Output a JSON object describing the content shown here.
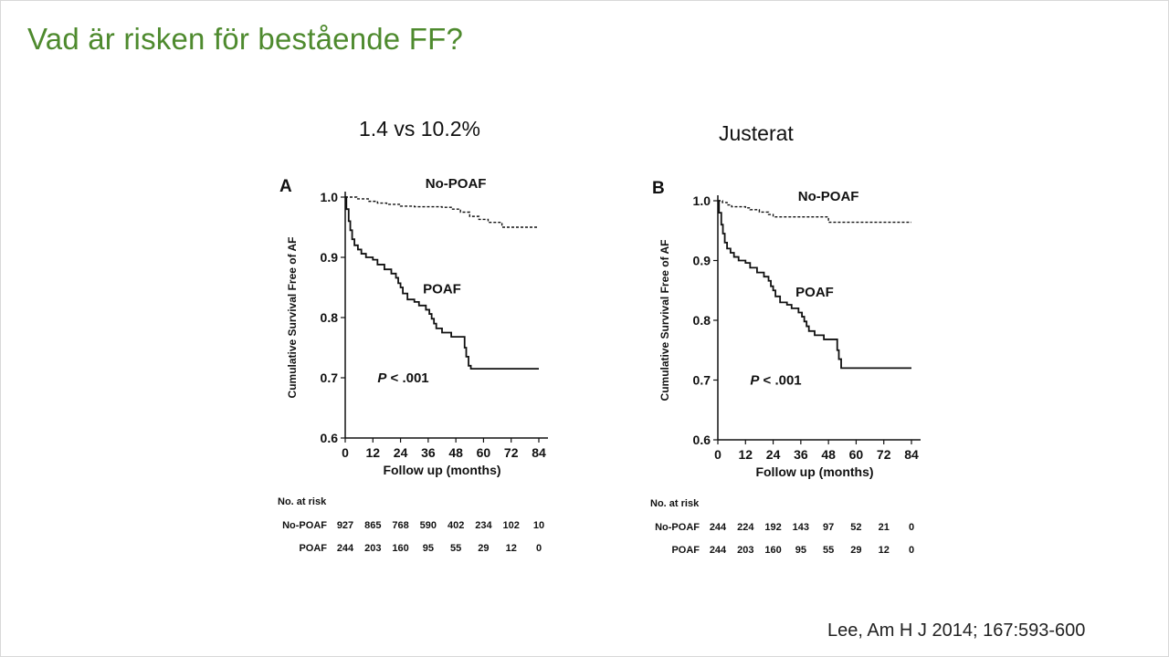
{
  "slide": {
    "title": "Vad är risken för bestående FF?",
    "citation": "Lee, Am H J 2014; 167:593-600"
  },
  "panels": [
    {
      "heading": "1.4 vs 10.2%"
    },
    {
      "heading": "Justerat"
    }
  ],
  "colors": {
    "title": "#4e8a2e",
    "lines": "#111111"
  },
  "chart_data": [
    {
      "type": "line",
      "panel_label": "A",
      "xlabel": "Follow up (months)",
      "ylabel": "Cumulative Survival Free of AF",
      "xlim": [
        0,
        84
      ],
      "ylim": [
        0.6,
        1.0
      ],
      "x_ticks": [
        0,
        12,
        24,
        36,
        48,
        60,
        72,
        84
      ],
      "y_ticks": [
        "0.6",
        "0.7",
        "0.8",
        "0.9",
        "1.0"
      ],
      "grid": false,
      "p_value": {
        "prefix": "P",
        "text": " < .001"
      },
      "series": [
        {
          "name": "No-POAF",
          "style": "dashed",
          "label_at": [
            48,
            1.015
          ],
          "points": [
            [
              0,
              1.0
            ],
            [
              5,
              0.997
            ],
            [
              10,
              0.993
            ],
            [
              14,
              0.99
            ],
            [
              18,
              0.988
            ],
            [
              24,
              0.985
            ],
            [
              30,
              0.984
            ],
            [
              36,
              0.984
            ],
            [
              42,
              0.983
            ],
            [
              46,
              0.98
            ],
            [
              50,
              0.975
            ],
            [
              54,
              0.968
            ],
            [
              58,
              0.963
            ],
            [
              62,
              0.958
            ],
            [
              68,
              0.95
            ],
            [
              84,
              0.95
            ]
          ]
        },
        {
          "name": "POAF",
          "style": "solid",
          "label_at": [
            42,
            0.84
          ],
          "points": [
            [
              0,
              1.0
            ],
            [
              0.5,
              0.98
            ],
            [
              1.5,
              0.96
            ],
            [
              2.2,
              0.945
            ],
            [
              3,
              0.93
            ],
            [
              4,
              0.92
            ],
            [
              5.5,
              0.913
            ],
            [
              7,
              0.906
            ],
            [
              9,
              0.9
            ],
            [
              12,
              0.896
            ],
            [
              14,
              0.888
            ],
            [
              17,
              0.88
            ],
            [
              20,
              0.873
            ],
            [
              22,
              0.866
            ],
            [
              23,
              0.857
            ],
            [
              24,
              0.85
            ],
            [
              25,
              0.84
            ],
            [
              27,
              0.83
            ],
            [
              30,
              0.826
            ],
            [
              32,
              0.82
            ],
            [
              35,
              0.813
            ],
            [
              36.5,
              0.806
            ],
            [
              37.5,
              0.798
            ],
            [
              38.5,
              0.79
            ],
            [
              39.5,
              0.782
            ],
            [
              42,
              0.775
            ],
            [
              46,
              0.768
            ],
            [
              51,
              0.768
            ],
            [
              51.8,
              0.75
            ],
            [
              52.5,
              0.735
            ],
            [
              53.5,
              0.72
            ],
            [
              54.5,
              0.715
            ],
            [
              84,
              0.715
            ]
          ]
        }
      ],
      "risk_table": {
        "title": "No. at risk",
        "rows": [
          {
            "label": "No-POAF",
            "values": [
              "927",
              "865",
              "768",
              "590",
              "402",
              "234",
              "102",
              "10"
            ]
          },
          {
            "label": "POAF",
            "values": [
              "244",
              "203",
              "160",
              "95",
              "55",
              "29",
              "12",
              "0"
            ]
          }
        ]
      }
    },
    {
      "type": "line",
      "panel_label": "B",
      "xlabel": "Follow up (months)",
      "ylabel": "Cumulative Survival Free of AF",
      "xlim": [
        0,
        84
      ],
      "ylim": [
        0.6,
        1.0
      ],
      "x_ticks": [
        0,
        12,
        24,
        36,
        48,
        60,
        72,
        84
      ],
      "y_ticks": [
        "0.6",
        "0.7",
        "0.8",
        "0.9",
        "1.0"
      ],
      "grid": false,
      "p_value": {
        "prefix": "P",
        "text": " < .001"
      },
      "series": [
        {
          "name": "No-POAF",
          "style": "dashed",
          "label_at": [
            48,
            1.0
          ],
          "points": [
            [
              0,
              1.0
            ],
            [
              2,
              0.997
            ],
            [
              4,
              0.993
            ],
            [
              6,
              0.99
            ],
            [
              12,
              0.988
            ],
            [
              14,
              0.985
            ],
            [
              18,
              0.981
            ],
            [
              22,
              0.977
            ],
            [
              24,
              0.973
            ],
            [
              36,
              0.973
            ],
            [
              47,
              0.973
            ],
            [
              48,
              0.964
            ],
            [
              84,
              0.964
            ]
          ]
        },
        {
          "name": "POAF",
          "style": "solid",
          "label_at": [
            42,
            0.84
          ],
          "points": [
            [
              0,
              1.0
            ],
            [
              0.5,
              0.98
            ],
            [
              1.5,
              0.96
            ],
            [
              2.2,
              0.945
            ],
            [
              3,
              0.93
            ],
            [
              4,
              0.92
            ],
            [
              5.5,
              0.913
            ],
            [
              7,
              0.906
            ],
            [
              9,
              0.9
            ],
            [
              12,
              0.896
            ],
            [
              14,
              0.888
            ],
            [
              17,
              0.88
            ],
            [
              20,
              0.873
            ],
            [
              22,
              0.866
            ],
            [
              23,
              0.857
            ],
            [
              24,
              0.85
            ],
            [
              25,
              0.84
            ],
            [
              27,
              0.83
            ],
            [
              30,
              0.826
            ],
            [
              32,
              0.82
            ],
            [
              35,
              0.813
            ],
            [
              36.5,
              0.806
            ],
            [
              37.5,
              0.798
            ],
            [
              38.5,
              0.79
            ],
            [
              39.5,
              0.782
            ],
            [
              42,
              0.775
            ],
            [
              46,
              0.768
            ],
            [
              51,
              0.768
            ],
            [
              51.8,
              0.75
            ],
            [
              52.5,
              0.735
            ],
            [
              53.5,
              0.72
            ],
            [
              54.5,
              0.72
            ],
            [
              84,
              0.72
            ]
          ]
        }
      ],
      "risk_table": {
        "title": "No. at risk",
        "rows": [
          {
            "label": "No-POAF",
            "values": [
              "244",
              "224",
              "192",
              "143",
              "97",
              "52",
              "21",
              "0"
            ]
          },
          {
            "label": "POAF",
            "values": [
              "244",
              "203",
              "160",
              "95",
              "55",
              "29",
              "12",
              "0"
            ]
          }
        ]
      }
    }
  ]
}
